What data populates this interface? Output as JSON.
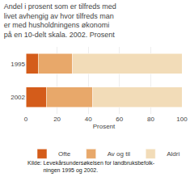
{
  "chart_data": {
    "type": "bar",
    "orientation": "horizontal",
    "stacked": true,
    "title": "Andel i prosent som er tilfreds med\nlivet avhengig av hvor tilfreds man\ner med husholdningens økonomi\npå en 10-delt skala. 2002. Prosent",
    "xlabel": "Prosent",
    "categories": [
      "1995",
      "2002"
    ],
    "series": [
      {
        "name": "Ofte",
        "color": "#d45c1a",
        "values": [
          8,
          13
        ]
      },
      {
        "name": "Av og til",
        "color": "#e8a86a",
        "values": [
          22,
          30
        ]
      },
      {
        "name": "Aldri",
        "color": "#f2dcb8",
        "values": [
          70,
          57
        ]
      }
    ],
    "xlim": [
      0,
      100
    ],
    "xticks": [
      0,
      20,
      40,
      60,
      80,
      100
    ],
    "grid": true,
    "legend": "bottom",
    "annotations": [
      "Kilde: Levekårsundersøkelsen for landbruksbefolk-",
      "          ningen 1995 og 2002."
    ]
  }
}
